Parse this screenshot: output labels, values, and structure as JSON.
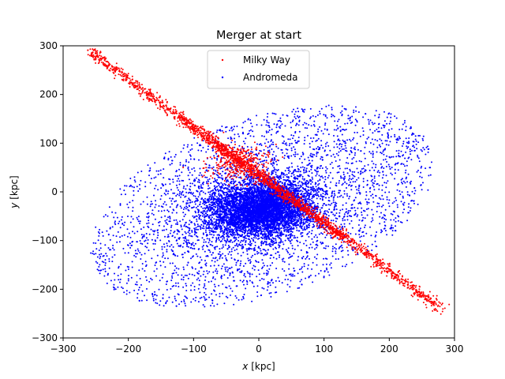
{
  "chart_data": {
    "type": "scatter",
    "title": "Merger at start",
    "xlabel_var": "x",
    "xlabel_unit": " [kpc]",
    "ylabel_var": "y",
    "ylabel_unit": " [kpc]",
    "xlim": [
      -300,
      300
    ],
    "ylim": [
      -300,
      300
    ],
    "xticks": [
      -300,
      -200,
      -100,
      0,
      100,
      200,
      300
    ],
    "yticks": [
      -300,
      -200,
      -100,
      0,
      100,
      200,
      300
    ],
    "xtick_labels": [
      "−300",
      "−200",
      "−100",
      "0",
      "100",
      "200",
      "300"
    ],
    "ytick_labels": [
      "−300",
      "−200",
      "−100",
      "0",
      "100",
      "200",
      "300"
    ],
    "grid": false,
    "legend_position": "upper center",
    "series": [
      {
        "name": "Milky Way",
        "color": "#ff0000",
        "point_count": 2500,
        "structure": {
          "disk_line_endpoints": [
            [
              -260,
              290
            ],
            [
              280,
              -240
            ]
          ],
          "disk_line_slope": -1.0,
          "dense_knot_center": [
            -30,
            60
          ]
        }
      },
      {
        "name": "Andromeda",
        "color": "#0000ff",
        "point_count": 9000,
        "structure": {
          "core_center": [
            -5,
            -40
          ],
          "secondary_core": [
            30,
            -20
          ],
          "core_radius": 40,
          "halo_extent": 250,
          "elongation_axis": "lower-left to upper-right"
        }
      }
    ]
  }
}
